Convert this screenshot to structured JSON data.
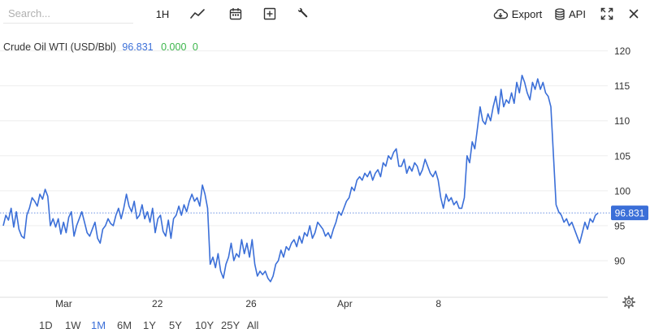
{
  "toolbar": {
    "search_placeholder": "Search...",
    "interval_label": "1H",
    "export_label": "Export",
    "api_label": "API"
  },
  "legend": {
    "name": "Crude Oil WTI (USD/Bbl)",
    "last": "96.831",
    "change": "0.000",
    "change_pct": "0",
    "last_color": "#3b6fd8",
    "change_color": "#3bb54a"
  },
  "ranges": [
    {
      "label": "1D",
      "active": false
    },
    {
      "label": "1W",
      "active": false
    },
    {
      "label": "1M",
      "active": true
    },
    {
      "label": "6M",
      "active": false
    },
    {
      "label": "1Y",
      "active": false
    },
    {
      "label": "5Y",
      "active": false
    },
    {
      "label": "10Y",
      "active": false
    },
    {
      "label": "25Y",
      "active": false
    },
    {
      "label": "All",
      "active": false
    }
  ],
  "chart_data": {
    "type": "line",
    "title": "Crude Oil WTI (USD/Bbl)",
    "ylim": [
      85,
      121
    ],
    "yticks": [
      90,
      95,
      100,
      105,
      110,
      115,
      120
    ],
    "xticks": [
      {
        "label": "Mar",
        "x": 0.1
      },
      {
        "label": "22",
        "x": 0.255
      },
      {
        "label": "26",
        "x": 0.41
      },
      {
        "label": "Apr",
        "x": 0.565
      },
      {
        "label": "8",
        "x": 0.72
      }
    ],
    "last_value": 96.831,
    "line_color": "#3b6fd8",
    "series": [
      {
        "values": [
          95,
          96.5,
          95.8,
          97.5,
          94.8,
          97,
          94.5,
          93.5,
          93.2,
          96.5,
          97.5,
          99,
          98.5,
          97.8,
          99.5,
          98.8,
          100.2,
          99.2,
          95,
          96,
          94.8,
          96,
          93.8,
          95.5,
          94,
          96.2,
          97,
          93.5,
          95,
          96,
          97,
          95.5,
          94,
          93.5,
          94.5,
          95.5,
          93.2,
          92.5,
          94.5,
          95,
          96,
          95.3,
          95,
          96.5,
          97.5,
          96,
          97.5,
          99.5,
          97.8,
          97,
          98.5,
          96,
          96.5,
          98,
          96,
          97,
          95.5,
          97.5,
          94,
          96,
          96.5,
          94.2,
          93.5,
          95.8,
          93.2,
          96,
          96.5,
          97.8,
          96.5,
          98,
          97,
          98.5,
          99.5,
          98.5,
          99,
          97.8,
          100.8,
          99.5,
          97.5,
          89.5,
          90.5,
          89,
          91,
          88.5,
          87.5,
          89.5,
          90.5,
          92.5,
          90,
          91,
          90.5,
          93,
          91,
          92.5,
          90.5,
          93,
          89.5,
          87.8,
          88.5,
          88,
          88.5,
          87.5,
          87,
          87.8,
          89.5,
          90,
          91.5,
          90.5,
          92,
          91.5,
          92.5,
          93,
          92,
          93.5,
          92.5,
          94,
          93.5,
          95,
          93.2,
          94,
          95.5,
          95,
          94.5,
          93.5,
          94,
          93.2,
          94.5,
          95.5,
          97,
          96.5,
          97.5,
          98.5,
          99,
          100.5,
          100,
          101.5,
          102,
          101.5,
          102.5,
          102,
          102.8,
          101.5,
          102.5,
          103,
          102,
          104,
          103.5,
          105,
          104.5,
          105.5,
          106,
          103.5,
          103.5,
          104.5,
          102.5,
          103.5,
          102.8,
          104,
          103.5,
          102.2,
          103,
          104.5,
          103.5,
          102.5,
          102,
          102.8,
          101.5,
          99,
          97.5,
          99.5,
          98.5,
          99,
          98,
          98.5,
          97.5,
          97.5,
          99,
          105,
          104,
          107,
          106,
          109,
          112,
          110,
          109.5,
          111,
          110,
          112,
          113.5,
          111,
          114.5,
          112,
          113,
          112.5,
          114,
          112.5,
          115.5,
          114,
          116.5,
          115.5,
          114,
          113,
          115.5,
          114.5,
          116,
          114.5,
          115.5,
          114,
          113.5,
          112,
          105,
          98,
          97,
          96.5,
          95.5,
          96,
          95,
          95.5,
          94.5,
          93.5,
          92.5,
          94,
          95.5,
          94.5,
          96,
          95.5,
          96.5,
          96.8
        ]
      }
    ]
  }
}
